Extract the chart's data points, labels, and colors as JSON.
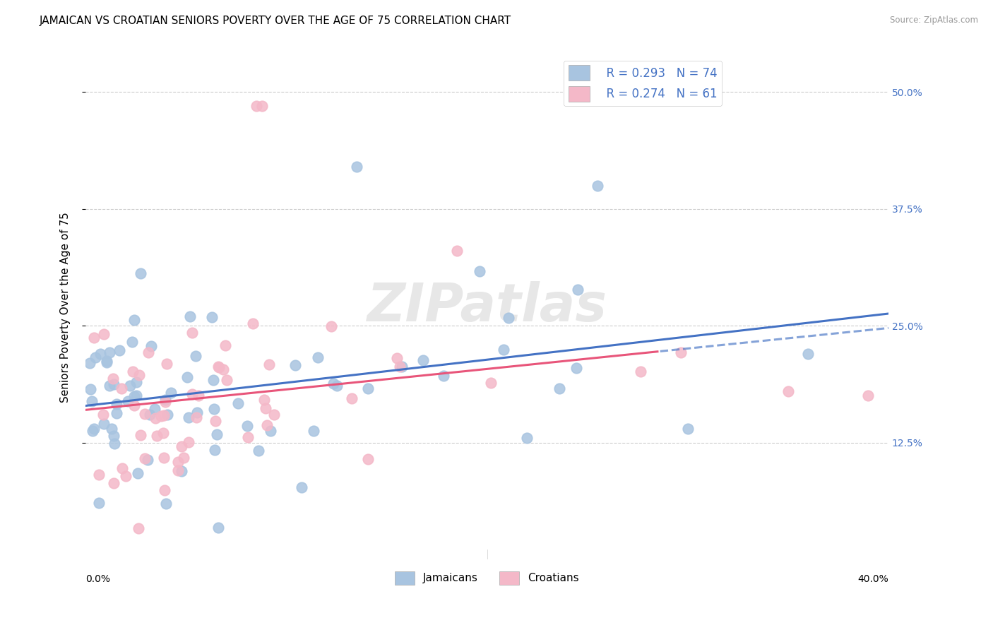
{
  "title": "JAMAICAN VS CROATIAN SENIORS POVERTY OVER THE AGE OF 75 CORRELATION CHART",
  "source": "Source: ZipAtlas.com",
  "ylabel": "Seniors Poverty Over the Age of 75",
  "ytick_values": [
    0.125,
    0.25,
    0.375,
    0.5
  ],
  "ytick_labels": [
    "12.5%",
    "25.0%",
    "37.5%",
    "50.0%"
  ],
  "xmin": 0.0,
  "xmax": 0.4,
  "ymin": 0.0,
  "ymax": 0.54,
  "legend_r_jamaican": "R = 0.293",
  "legend_n_jamaican": "N = 74",
  "legend_r_croatian": "R = 0.274",
  "legend_n_croatian": "N = 61",
  "watermark": "ZIPatlas",
  "jamaican_color": "#a8c4e0",
  "jamaican_line_color": "#4472c4",
  "croatian_color": "#f4b8c8",
  "croatian_line_color": "#e8557a",
  "grid_color": "#cccccc",
  "background_color": "#ffffff",
  "title_fontsize": 11,
  "axis_label_fontsize": 11,
  "tick_label_fontsize": 10,
  "right_tick_color": "#4472c4"
}
